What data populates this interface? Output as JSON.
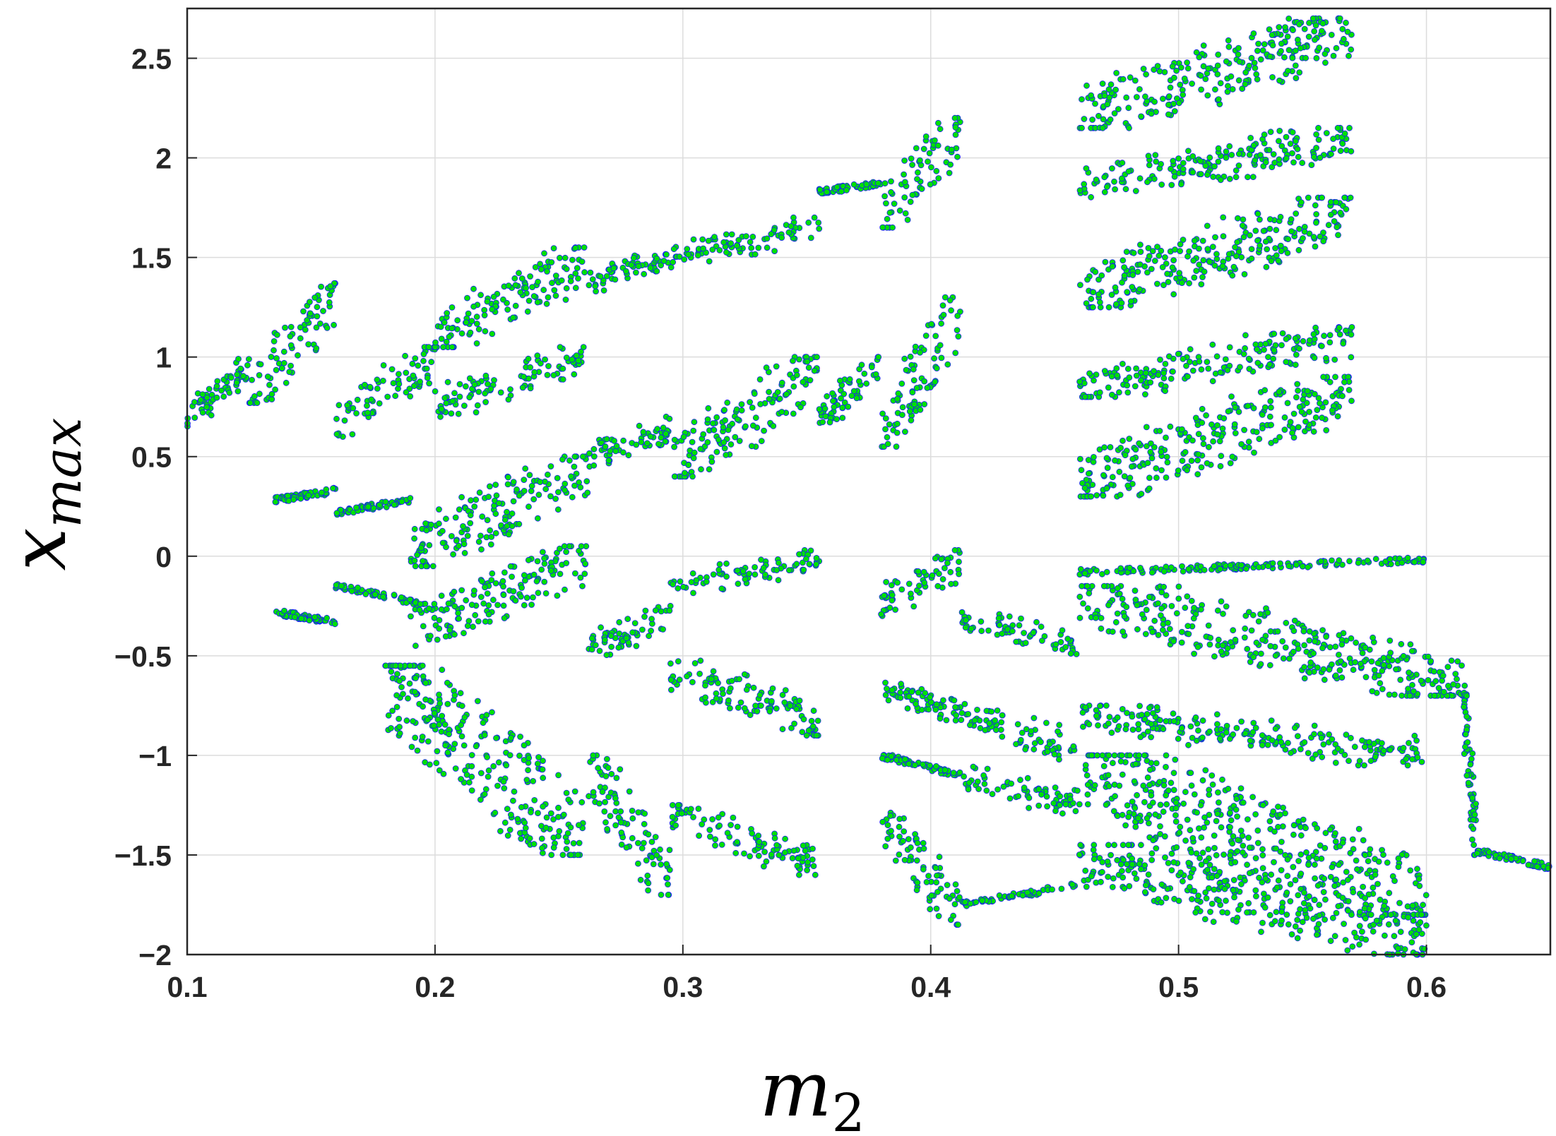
{
  "chart_data": {
    "type": "scatter",
    "title": "",
    "xlabel": "m",
    "xlabel_subscript": "2",
    "ylabel": "x",
    "ylabel_subscript": "max",
    "xlim": [
      0.1,
      0.65
    ],
    "ylim": [
      -2,
      2.75
    ],
    "x_ticks": [
      0.1,
      0.2,
      0.3,
      0.4,
      0.5,
      0.6
    ],
    "x_tick_labels": [
      "0.1",
      "0.2",
      "0.3",
      "0.4",
      "0.5",
      "0.6"
    ],
    "y_ticks": [
      2.5,
      2,
      1.5,
      1,
      0.5,
      0,
      -0.5,
      -1,
      -1.5,
      -2
    ],
    "y_tick_labels": [
      "2.5",
      "2",
      "1.5",
      "1",
      "0.5",
      "0",
      "−0.5",
      "−1",
      "−1.5",
      "−2"
    ],
    "grid": true,
    "legend": "none",
    "marker_fill": "#00e000",
    "marker_edge": "#1a1aff",
    "description_of_points": "bifurcation diagram: local maxima of x versus parameter m2",
    "branches": [
      {
        "x": [
          0.1,
          0.125
        ],
        "y": [
          0.7,
          0.95
        ]
      },
      {
        "x": [
          0.125,
          0.16
        ],
        "y": [
          0.82,
          1.32
        ]
      },
      {
        "x": [
          0.16,
          0.2
        ],
        "y": [
          0.65,
          1.0
        ]
      },
      {
        "x": [
          0.2,
          0.262
        ],
        "y": [
          1.1,
          1.5
        ]
      },
      {
        "x": [
          0.262,
          0.295
        ],
        "y": [
          1.38,
          1.5
        ]
      },
      {
        "x": [
          0.295,
          0.355
        ],
        "y": [
          1.5,
          1.65
        ]
      },
      {
        "x": [
          0.355,
          0.38
        ],
        "y": [
          1.83,
          1.87
        ]
      },
      {
        "x": [
          0.38,
          0.412
        ],
        "y": [
          1.7,
          2.15
        ]
      },
      {
        "x": [
          0.46,
          0.57
        ],
        "y": [
          2.2,
          2.65
        ]
      },
      {
        "x": [
          0.46,
          0.57
        ],
        "y": [
          1.85,
          2.1
        ]
      },
      {
        "x": [
          0.46,
          0.57
        ],
        "y": [
          1.3,
          1.75
        ]
      },
      {
        "x": [
          0.46,
          0.57
        ],
        "y": [
          0.85,
          1.1
        ]
      },
      {
        "x": [
          0.46,
          0.57
        ],
        "y": [
          0.35,
          0.85
        ]
      },
      {
        "x": [
          0.2,
          0.26
        ],
        "y": [
          0.75,
          1.0
        ]
      },
      {
        "x": [
          0.19,
          0.262
        ],
        "y": [
          0.0,
          0.45
        ]
      },
      {
        "x": [
          0.262,
          0.295
        ],
        "y": [
          0.5,
          0.65
        ]
      },
      {
        "x": [
          0.295,
          0.355
        ],
        "y": [
          0.45,
          0.95
        ]
      },
      {
        "x": [
          0.355,
          0.38
        ],
        "y": [
          0.7,
          0.95
        ]
      },
      {
        "x": [
          0.38,
          0.412
        ],
        "y": [
          0.6,
          1.25
        ]
      },
      {
        "x": [
          0.135,
          0.16
        ],
        "y": [
          0.28,
          0.33
        ]
      },
      {
        "x": [
          0.16,
          0.19
        ],
        "y": [
          0.22,
          0.28
        ]
      },
      {
        "x": [
          0.19,
          0.262
        ],
        "y": [
          -0.4,
          0.0
        ]
      },
      {
        "x": [
          0.262,
          0.295
        ],
        "y": [
          -0.46,
          -0.3
        ]
      },
      {
        "x": [
          0.295,
          0.355
        ],
        "y": [
          -0.15,
          -0.02
        ]
      },
      {
        "x": [
          0.38,
          0.412
        ],
        "y": [
          -0.25,
          -0.02
        ]
      },
      {
        "x": [
          0.412,
          0.46
        ],
        "y": [
          -0.3,
          -0.45
        ]
      },
      {
        "x": [
          0.46,
          0.6
        ],
        "y": [
          -0.08,
          -0.02
        ]
      },
      {
        "x": [
          0.46,
          0.615
        ],
        "y": [
          -0.2,
          -0.65
        ]
      },
      {
        "x": [
          0.135,
          0.16
        ],
        "y": [
          -0.28,
          -0.33
        ]
      },
      {
        "x": [
          0.16,
          0.2
        ],
        "y": [
          -0.15,
          -0.25
        ]
      },
      {
        "x": [
          0.295,
          0.355
        ],
        "y": [
          -0.55,
          -0.85
        ]
      },
      {
        "x": [
          0.38,
          0.412
        ],
        "y": [
          -0.65,
          -0.8
        ]
      },
      {
        "x": [
          0.412,
          0.46
        ],
        "y": [
          -0.78,
          -0.98
        ]
      },
      {
        "x": [
          0.46,
          0.6
        ],
        "y": [
          -0.8,
          -1.0
        ]
      },
      {
        "x": [
          0.18,
          0.26
        ],
        "y": [
          -0.6,
          -1.45
        ]
      },
      {
        "x": [
          0.262,
          0.295
        ],
        "y": [
          -1.05,
          -1.65
        ]
      },
      {
        "x": [
          0.295,
          0.355
        ],
        "y": [
          -1.3,
          -1.55
        ]
      },
      {
        "x": [
          0.38,
          0.412
        ],
        "y": [
          -1.0,
          -1.1
        ]
      },
      {
        "x": [
          0.412,
          0.46
        ],
        "y": [
          -1.1,
          -1.25
        ]
      },
      {
        "x": [
          0.46,
          0.6
        ],
        "y": [
          -1.05,
          -1.75
        ]
      },
      {
        "x": [
          0.38,
          0.412
        ],
        "y": [
          -1.3,
          -1.8
        ]
      },
      {
        "x": [
          0.412,
          0.46
        ],
        "y": [
          -1.75,
          -1.65
        ]
      },
      {
        "x": [
          0.46,
          0.6
        ],
        "y": [
          -1.5,
          -1.95
        ]
      },
      {
        "x": [
          0.615,
          0.62
        ],
        "y": [
          -0.7,
          -1.45
        ]
      },
      {
        "x": [
          0.62,
          0.65
        ],
        "y": [
          -1.48,
          -1.56
        ]
      }
    ]
  }
}
